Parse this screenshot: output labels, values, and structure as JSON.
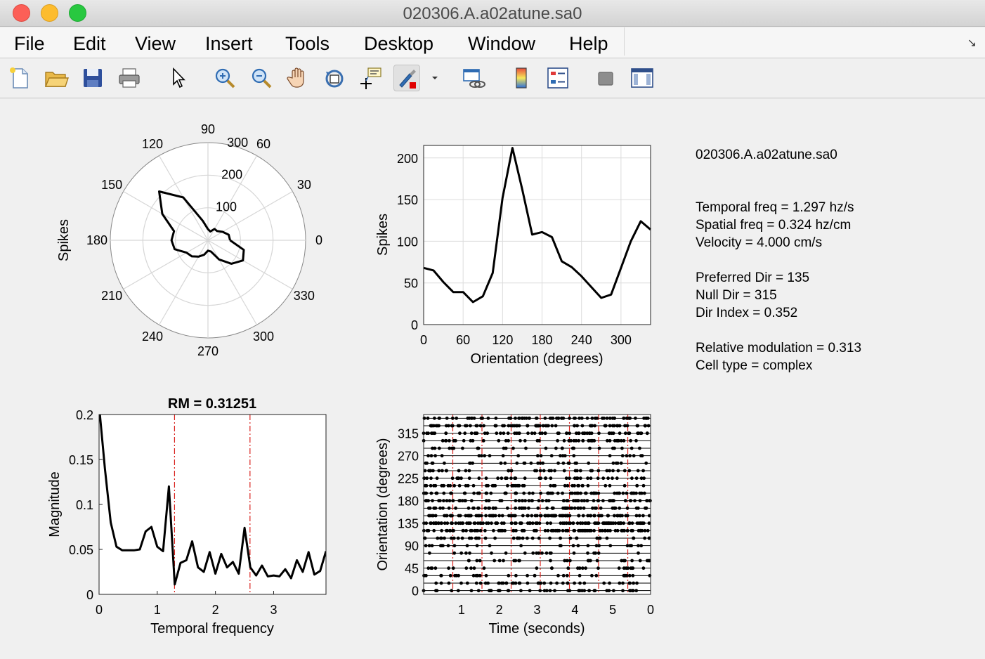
{
  "window": {
    "title": "020306.A.a02atune.sa0"
  },
  "menu": [
    "File",
    "Edit",
    "View",
    "Insert",
    "Tools",
    "Desktop",
    "Window",
    "Help"
  ],
  "toolbar": {
    "icons": [
      "new-file-icon",
      "open-folder-icon",
      "save-icon",
      "print-icon",
      "pointer-icon",
      "zoom-in-icon",
      "zoom-out-icon",
      "pan-hand-icon",
      "rotate-3d-icon",
      "data-cursor-icon",
      "brush-icon",
      "link-plot-icon",
      "colorbar-icon",
      "legend-icon",
      "hide-plot-tools-icon",
      "show-plot-tools-icon"
    ]
  },
  "info": {
    "filename": "020306.A.a02atune.sa0",
    "temporal_freq": "Temporal freq = 1.297 hz/s",
    "spatial_freq": "Spatial freq = 0.324 hz/cm",
    "velocity": "Velocity = 4.000 cm/s",
    "preferred_dir": "Preferred Dir = 135",
    "null_dir": "Null Dir = 315",
    "dir_index": "Dir Index = 0.352",
    "relative_modulation": "Relative modulation = 0.313",
    "cell_type": "Cell type = complex"
  },
  "chart_data": [
    {
      "type": "polar",
      "ylabel": "Spikes",
      "angle_ticks": [
        "0",
        "30",
        "60",
        "90",
        "120",
        "150",
        "180",
        "210",
        "240",
        "270",
        "300",
        "330"
      ],
      "radius_ticks": [
        "100",
        "200",
        "300"
      ],
      "rlim": [
        0,
        300
      ],
      "theta": [
        0,
        15,
        30,
        45,
        60,
        75,
        90,
        105,
        120,
        135,
        150,
        165,
        180,
        195,
        210,
        225,
        240,
        255,
        270,
        285,
        300,
        315,
        330,
        345
      ],
      "r": [
        68,
        66,
        52,
        40,
        40,
        28,
        34,
        62,
        152,
        212,
        162,
        108,
        112,
        106,
        76,
        70,
        58,
        46,
        32,
        36,
        68,
        102,
        124,
        114
      ]
    },
    {
      "type": "line",
      "xlabel": "Orientation (degrees)",
      "ylabel": "Spikes",
      "xlim": [
        0,
        345
      ],
      "ylim": [
        0,
        215
      ],
      "xticks": [
        "0",
        "60",
        "120",
        "180",
        "240",
        "300"
      ],
      "yticks": [
        "0",
        "50",
        "100",
        "150",
        "200"
      ],
      "x": [
        0,
        15,
        30,
        45,
        60,
        75,
        90,
        105,
        120,
        135,
        150,
        165,
        180,
        195,
        210,
        225,
        240,
        255,
        270,
        285,
        300,
        315,
        330,
        345
      ],
      "y": [
        68,
        65,
        51,
        39,
        39,
        27,
        34,
        62,
        152,
        212,
        162,
        108,
        111,
        105,
        76,
        69,
        58,
        45,
        32,
        36,
        68,
        100,
        124,
        114
      ]
    },
    {
      "type": "line",
      "title": "RM = 0.31251",
      "xlabel": "Temporal frequency",
      "ylabel": "Magnitude",
      "xlim": [
        0,
        3.9
      ],
      "ylim": [
        0,
        0.2
      ],
      "xticks": [
        "0",
        "1",
        "2",
        "3"
      ],
      "yticks": [
        "0",
        "0.05",
        "0.1",
        "0.15",
        "0.2"
      ],
      "vlines": [
        1.297,
        2.594
      ],
      "x": [
        0,
        0.1,
        0.2,
        0.3,
        0.4,
        0.5,
        0.6,
        0.7,
        0.8,
        0.9,
        1.0,
        1.1,
        1.2,
        1.3,
        1.4,
        1.5,
        1.6,
        1.7,
        1.8,
        1.9,
        2.0,
        2.1,
        2.2,
        2.3,
        2.4,
        2.5,
        2.6,
        2.7,
        2.8,
        2.9,
        3.0,
        3.1,
        3.2,
        3.3,
        3.4,
        3.5,
        3.6,
        3.7,
        3.8,
        3.9
      ],
      "y": [
        0.21,
        0.14,
        0.08,
        0.053,
        0.049,
        0.049,
        0.049,
        0.05,
        0.07,
        0.075,
        0.053,
        0.048,
        0.12,
        0.011,
        0.035,
        0.038,
        0.059,
        0.03,
        0.025,
        0.047,
        0.023,
        0.045,
        0.03,
        0.036,
        0.023,
        0.074,
        0.03,
        0.021,
        0.032,
        0.02,
        0.021,
        0.02,
        0.028,
        0.018,
        0.038,
        0.025,
        0.047,
        0.022,
        0.026,
        0.048
      ]
    },
    {
      "type": "raster",
      "xlabel": "Time (seconds)",
      "ylabel": "Orientation (degrees)",
      "xlim": [
        0,
        6
      ],
      "ylim": [
        0,
        345
      ],
      "xticks": [
        "1",
        "2",
        "3",
        "4",
        "5",
        "0"
      ],
      "yticks": [
        "0",
        "45",
        "90",
        "135",
        "180",
        "225",
        "270",
        "315"
      ],
      "rows": [
        0,
        15,
        30,
        45,
        60,
        75,
        90,
        105,
        120,
        135,
        150,
        165,
        180,
        195,
        210,
        225,
        240,
        255,
        270,
        285,
        300,
        315,
        330,
        345
      ],
      "stimulus_cycles": [
        0.771,
        1.542,
        2.313,
        3.084,
        3.855,
        4.626,
        5.397
      ]
    }
  ]
}
